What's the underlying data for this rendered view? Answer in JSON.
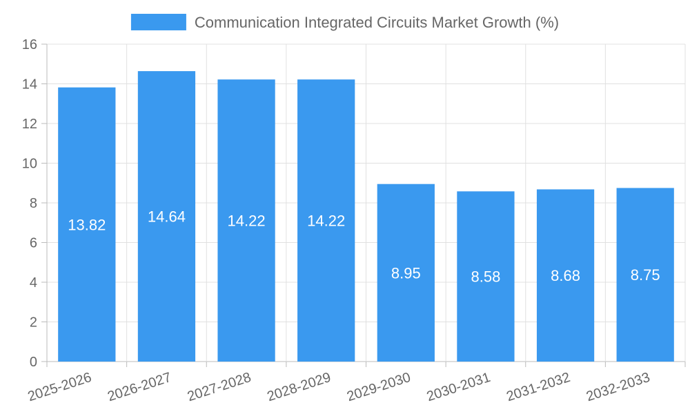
{
  "chart_data": {
    "type": "bar",
    "title": "",
    "xlabel": "",
    "ylabel": "",
    "legend": {
      "position": "top-center",
      "entries": [
        "Communication Integrated Circuits Market Growth (%)"
      ]
    },
    "grid": true,
    "ylim": [
      0,
      16
    ],
    "yticks": [
      0,
      2,
      4,
      6,
      8,
      10,
      12,
      14,
      16
    ],
    "categories": [
      "2025-2026",
      "2026-2027",
      "2027-2028",
      "2028-2029",
      "2029-2030",
      "2030-2031",
      "2031-2032",
      "2032-2033"
    ],
    "series": [
      {
        "name": "Communication Integrated Circuits Market Growth (%)",
        "color": "#3a99ef",
        "values": [
          13.82,
          14.64,
          14.22,
          14.22,
          8.95,
          8.58,
          8.68,
          8.75
        ],
        "value_labels": [
          "13.82",
          "14.64",
          "14.22",
          "14.22",
          "8.95",
          "8.58",
          "8.68",
          "8.75"
        ]
      }
    ],
    "colors": {
      "bar": "#3a99ef",
      "grid": "#e0e0e0",
      "axis": "#bbbbbb",
      "tick_text": "#666666",
      "value_text": "#ffffff"
    }
  }
}
